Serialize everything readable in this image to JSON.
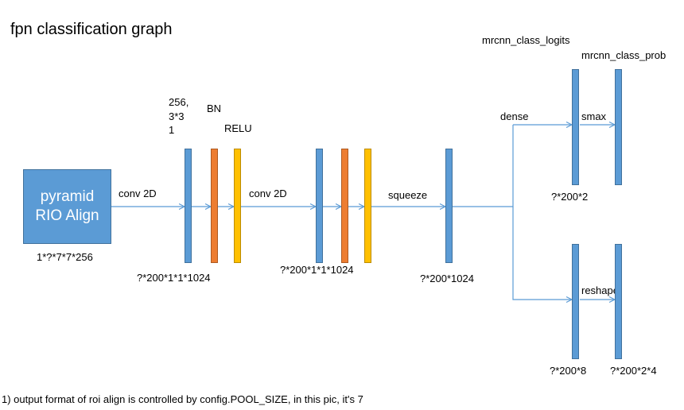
{
  "title": "fpn classification graph",
  "colors": {
    "blue": "#5b9bd5",
    "blue_border": "#41719c",
    "orange": "#ed7d31",
    "orange_border": "#ae5a21",
    "yellow": "#ffc000",
    "yellow_border": "#bc8c00",
    "arrow": "#5b9bd5"
  },
  "roi_block": {
    "line1": "pyramid",
    "line2": "RIO Align",
    "shape": "1*?*7*7*256"
  },
  "layer1": {
    "edge_label": "conv 2D",
    "params": [
      "256,",
      "3*3",
      "1"
    ],
    "bn_label": "BN",
    "relu_label": "RELU",
    "shape": "?*200*1*1*1024"
  },
  "layer2": {
    "edge_label": "conv 2D",
    "shape": "?*200*1*1*1024"
  },
  "squeeze": {
    "edge_label": "squeeze",
    "shape": "?*200*1024"
  },
  "heads": {
    "dense_label": "dense",
    "logits_label": "mrcnn_class_logits",
    "prob_label": "mrcnn_class_prob",
    "smax_label": "smax",
    "logits_shape": "?*200*2",
    "reshape_label": "reshape",
    "bbox_shape": "?*200*8",
    "bbox_reshaped_shape": "?*200*2*4"
  },
  "footnote": "1) output format of roi align is controlled by config.POOL_SIZE, in this pic, it's 7"
}
